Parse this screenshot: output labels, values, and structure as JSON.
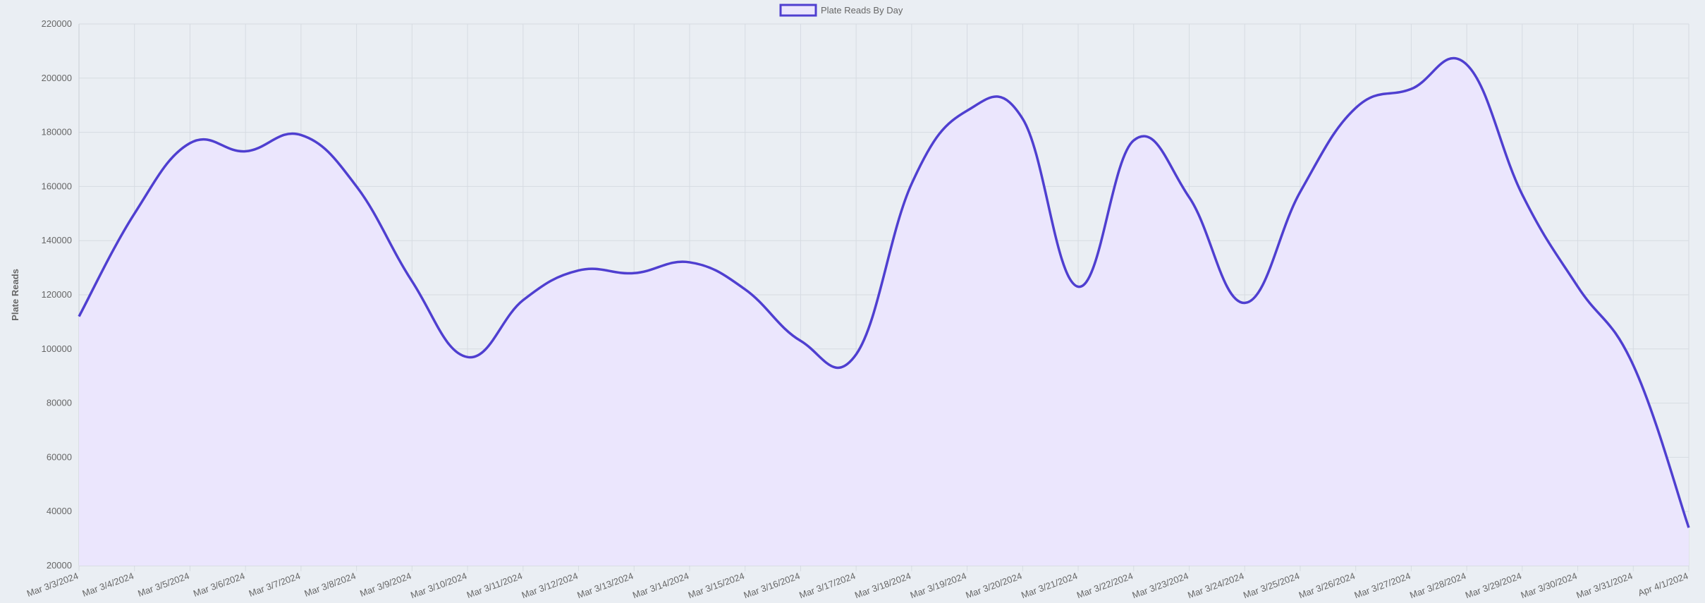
{
  "chart_data": {
    "type": "line",
    "legend": "Plate Reads By Day",
    "y_label": "Plate Reads",
    "categories": [
      "Mar 3/3/2024",
      "Mar 3/4/2024",
      "Mar 3/5/2024",
      "Mar 3/6/2024",
      "Mar 3/7/2024",
      "Mar 3/8/2024",
      "Mar 3/9/2024",
      "Mar 3/10/2024",
      "Mar 3/11/2024",
      "Mar 3/12/2024",
      "Mar 3/13/2024",
      "Mar 3/14/2024",
      "Mar 3/15/2024",
      "Mar 3/16/2024",
      "Mar 3/17/2024",
      "Mar 3/18/2024",
      "Mar 3/19/2024",
      "Mar 3/20/2024",
      "Mar 3/21/2024",
      "Mar 3/22/2024",
      "Mar 3/23/2024",
      "Mar 3/24/2024",
      "Mar 3/25/2024",
      "Mar 3/26/2024",
      "Mar 3/27/2024",
      "Mar 3/28/2024",
      "Mar 3/29/2024",
      "Mar 3/30/2024",
      "Mar 3/31/2024",
      "Apr 4/1/2024"
    ],
    "series": [
      {
        "name": "Plate Reads By Day",
        "color": "#4f3fd0",
        "fill": "#ebe6fd",
        "values": [
          112000,
          150000,
          176000,
          173000,
          179000,
          160000,
          125000,
          97000,
          118000,
          129000,
          128000,
          132000,
          122000,
          103000,
          98000,
          161000,
          188000,
          185000,
          123000,
          177000,
          156000,
          117000,
          158000,
          189000,
          196000,
          205000,
          157000,
          123000,
          94000,
          34000
        ]
      }
    ],
    "ylim": [
      20000,
      220000
    ],
    "yticks": [
      20000,
      40000,
      60000,
      80000,
      100000,
      120000,
      140000,
      160000,
      180000,
      200000,
      220000
    ],
    "grid": true
  }
}
